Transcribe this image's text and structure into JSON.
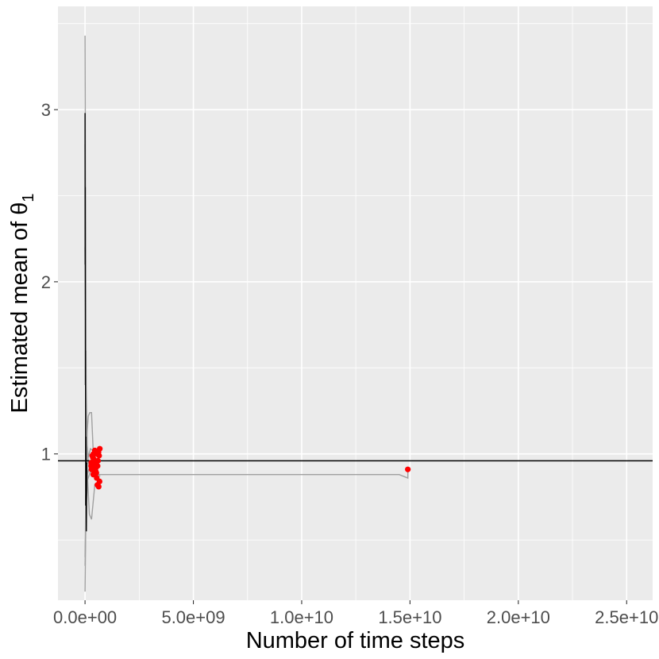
{
  "chart_data": {
    "type": "line",
    "title": "",
    "xlabel": "Number of time steps",
    "ylabel_main": "Estimated mean of θ",
    "ylabel_subscript": "1",
    "xlim": [
      -1250000000.0,
      26200000000.0
    ],
    "ylim": [
      0.15,
      3.6
    ],
    "x_major_ticks": [
      0,
      5000000000.0,
      10000000000.0,
      15000000000.0,
      20000000000.0,
      25000000000.0
    ],
    "x_tick_labels": [
      "0.0e+00",
      "5.0e+09",
      "1.0e+10",
      "1.5e+10",
      "2.0e+10",
      "2.5e+10"
    ],
    "y_major_ticks": [
      1,
      2,
      3
    ],
    "y_tick_labels": [
      "1",
      "2",
      "3"
    ],
    "reference_line_y": 0.96,
    "grid": true,
    "colors": {
      "panel": "#ebebeb",
      "grid": "#ffffff",
      "trace": "#a0a0a0",
      "spike": "#000000",
      "points": "#ff0000",
      "reference": "#000000"
    },
    "traces": [
      {
        "x": [
          0,
          20000000.0,
          50000000.0,
          100000000.0,
          150000000.0,
          250000000.0,
          400000000.0,
          600000000.0,
          700000000.0,
          1000000000.0,
          2000000000.0,
          5000000000.0,
          10000000000.0,
          14500000000.0,
          14900000000.0,
          14900000000.0
        ],
        "y": [
          3.43,
          2.6,
          1.4,
          1.05,
          0.95,
          0.9,
          0.89,
          0.88,
          0.88,
          0.88,
          0.88,
          0.88,
          0.88,
          0.88,
          0.86,
          0.91
        ]
      },
      {
        "x": [
          0,
          30000000.0,
          80000000.0,
          150000000.0,
          220000000.0,
          300000000.0,
          400000000.0,
          550000000.0,
          700000000.0
        ],
        "y": [
          0.2,
          0.55,
          1.1,
          1.22,
          1.24,
          1.24,
          0.95,
          0.88,
          0.87
        ]
      },
      {
        "x": [
          0,
          40000000.0,
          100000000.0,
          200000000.0,
          300000000.0,
          450000000.0,
          600000000.0,
          700000000.0
        ],
        "y": [
          2.8,
          1.3,
          0.9,
          0.65,
          0.62,
          0.82,
          0.8,
          0.82
        ]
      },
      {
        "x": [
          0,
          50000000.0,
          120000000.0,
          250000000.0,
          400000000.0,
          500000000.0,
          650000000.0
        ],
        "y": [
          0.35,
          0.7,
          0.85,
          0.9,
          0.92,
          0.95,
          0.96
        ]
      },
      {
        "x": [
          0,
          60000000.0,
          150000000.0,
          250000000.0,
          350000000.0,
          500000000.0,
          600000000.0
        ],
        "y": [
          2.2,
          1.1,
          0.98,
          1.03,
          1.02,
          1.0,
          1.0
        ]
      },
      {
        "x": [
          0,
          30000000.0,
          100000000.0,
          200000000.0,
          300000000.0,
          400000000.0,
          550000000.0
        ],
        "y": [
          0.4,
          0.75,
          0.88,
          0.92,
          0.9,
          0.89,
          0.9
        ]
      }
    ],
    "spike": {
      "x": [
        0,
        5000000.0,
        10000000.0,
        15000000.0,
        20000000.0,
        30000000.0,
        40000000.0,
        60000000.0,
        80000000.0
      ],
      "y": [
        2.98,
        2.1,
        2.55,
        1.4,
        1.6,
        0.7,
        1.1,
        0.55,
        0.95
      ]
    },
    "points": {
      "x": [
        14900000000.0,
        680000000.0,
        650000000.0,
        620000000.0,
        600000000.0,
        580000000.0,
        550000000.0,
        520000000.0,
        500000000.0,
        480000000.0,
        450000000.0,
        420000000.0,
        400000000.0,
        380000000.0,
        350000000.0,
        330000000.0,
        300000000.0,
        280000000.0,
        670000000.0,
        630000000.0,
        570000000.0,
        540000000.0,
        490000000.0,
        460000000.0,
        430000000.0,
        390000000.0,
        360000000.0,
        320000000.0,
        290000000.0
      ],
      "y": [
        0.91,
        1.03,
        0.99,
        1.01,
        0.96,
        0.93,
        1.0,
        0.89,
        0.92,
        0.95,
        1.02,
        0.9,
        0.97,
        0.88,
        0.94,
        0.99,
        0.91,
        0.93,
        0.84,
        0.81,
        0.82,
        0.86,
        0.9,
        0.94,
        0.96,
        1.0,
        0.98,
        0.93,
        0.95
      ]
    }
  }
}
